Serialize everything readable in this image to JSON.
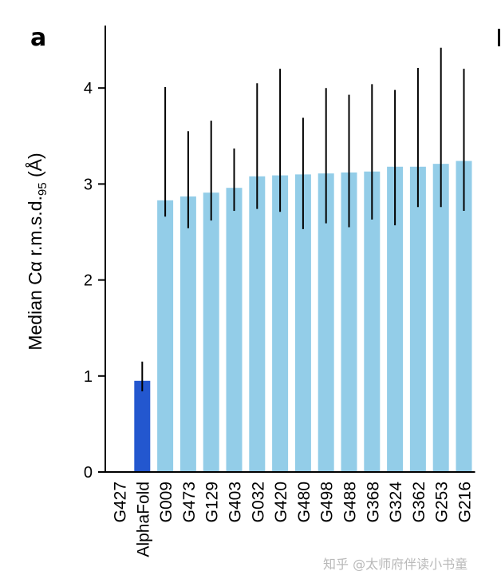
{
  "panel_label": "a",
  "watermark": "知乎 @太师府伴读小书童",
  "colors": {
    "highlight": "#2357cf",
    "bar": "#93cde8",
    "error_bar": "#000000",
    "axis": "#000000"
  },
  "chart_data": {
    "type": "bar",
    "title": "",
    "xlabel": "",
    "ylabel": "Median Cα r.m.s.d.95 (Å)",
    "ylabel_parts": {
      "main": "Median Cα r.m.s.d.",
      "sub": "95",
      "unit": " (Å)"
    },
    "ylim": [
      0,
      4.6
    ],
    "yticks": [
      0,
      1,
      2,
      3,
      4
    ],
    "categories": [
      "G427",
      "AlphaFold",
      "G009",
      "G473",
      "G129",
      "G403",
      "G032",
      "G420",
      "G480",
      "G498",
      "G488",
      "G368",
      "G324",
      "G362",
      "G253",
      "G216"
    ],
    "values": [
      null,
      0.95,
      2.83,
      2.87,
      2.91,
      2.96,
      3.08,
      3.09,
      3.1,
      3.11,
      3.12,
      3.13,
      3.18,
      3.18,
      3.21,
      3.24
    ],
    "error_low": [
      null,
      0.84,
      2.66,
      2.54,
      2.62,
      2.72,
      2.74,
      2.71,
      2.53,
      2.59,
      2.55,
      2.63,
      2.57,
      2.76,
      2.76,
      2.72
    ],
    "error_high": [
      null,
      1.15,
      4.01,
      3.55,
      3.66,
      3.37,
      4.05,
      4.2,
      3.69,
      4.0,
      3.93,
      4.04,
      3.98,
      4.21,
      4.42,
      4.2
    ],
    "highlight_category": "AlphaFold"
  }
}
